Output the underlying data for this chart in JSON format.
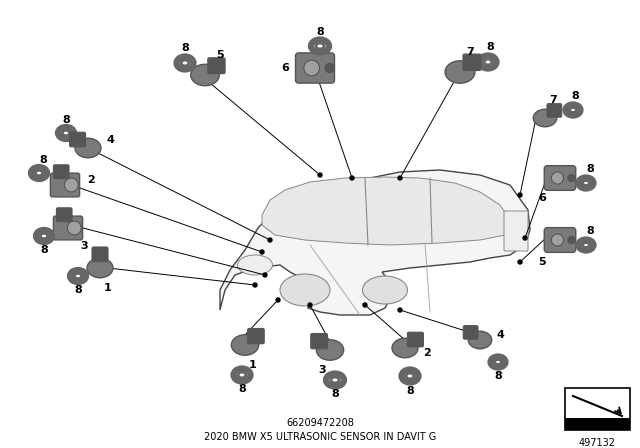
{
  "title": "2020 BMW X5 ULTRASONIC SENSOR IN DAVIT G",
  "part_number": "66209472208",
  "diagram_number": "497132",
  "bg_color": "#ffffff",
  "line_color": "#000000",
  "sensor_body_color": "#7a7a7a",
  "sensor_dark_color": "#555555",
  "sensor_light_color": "#a0a0a0",
  "ring_color": "#666666",
  "text_color": "#000000",
  "car_body_color": "#f5f5f5",
  "car_edge_color": "#444444",
  "car_window_color": "#e8e8e8"
}
